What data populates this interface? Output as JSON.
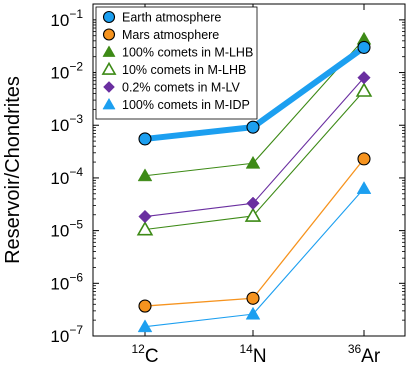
{
  "chart_data": {
    "type": "line",
    "ylabel": "Reservoir/Chondrites",
    "y_scale": "log",
    "ylim": [
      1e-07,
      0.2
    ],
    "categories": [
      {
        "base": "C",
        "sup": "12"
      },
      {
        "base": "N",
        "sup": "14"
      },
      {
        "base": "Ar",
        "sup": "36"
      }
    ],
    "y_ticks": [
      {
        "value": 1e-07,
        "base": "10",
        "exp": "−7"
      },
      {
        "value": 1e-06,
        "base": "10",
        "exp": "−6"
      },
      {
        "value": 1e-05,
        "base": "10",
        "exp": "−5"
      },
      {
        "value": 0.0001,
        "base": "10",
        "exp": "−4"
      },
      {
        "value": 0.001,
        "base": "10",
        "exp": "−3"
      },
      {
        "value": 0.01,
        "base": "10",
        "exp": "−2"
      },
      {
        "value": 0.1,
        "base": "10",
        "exp": "−1"
      }
    ],
    "legend_position": "top-left",
    "series": [
      {
        "name": "Earth atmosphere",
        "color": "#1c9ff0",
        "marker": "circle",
        "values": [
          0.00055,
          0.00092,
          0.03
        ],
        "line_width": 6,
        "filled": true
      },
      {
        "name": "Mars atmosphere",
        "color": "#f6931e",
        "marker": "circle",
        "values": [
          3.7e-07,
          5.2e-07,
          0.00023
        ],
        "line_width": 1.3,
        "filled": true
      },
      {
        "name": "100% comets in M-LHB",
        "color": "#3d8a16",
        "marker": "triangle",
        "values": [
          0.00011,
          0.00019,
          0.043
        ],
        "line_width": 1.1,
        "filled": true
      },
      {
        "name": "10% comets in M-LHB",
        "color": "#3d8a16",
        "marker": "triangle",
        "values": [
          1.05e-05,
          1.9e-05,
          0.0045
        ],
        "line_width": 1.1,
        "filled": false
      },
      {
        "name": "0.2% comets in M-LV",
        "color": "#6a2fa0",
        "marker": "diamond",
        "values": [
          1.85e-05,
          3.3e-05,
          0.008
        ],
        "line_width": 1.1,
        "filled": true
      },
      {
        "name": "100% comets in M-IDP",
        "color": "#1c9ff0",
        "marker": "triangle",
        "values": [
          1.5e-07,
          2.6e-07,
          6.3e-05
        ],
        "line_width": 1.1,
        "filled": true
      }
    ]
  }
}
